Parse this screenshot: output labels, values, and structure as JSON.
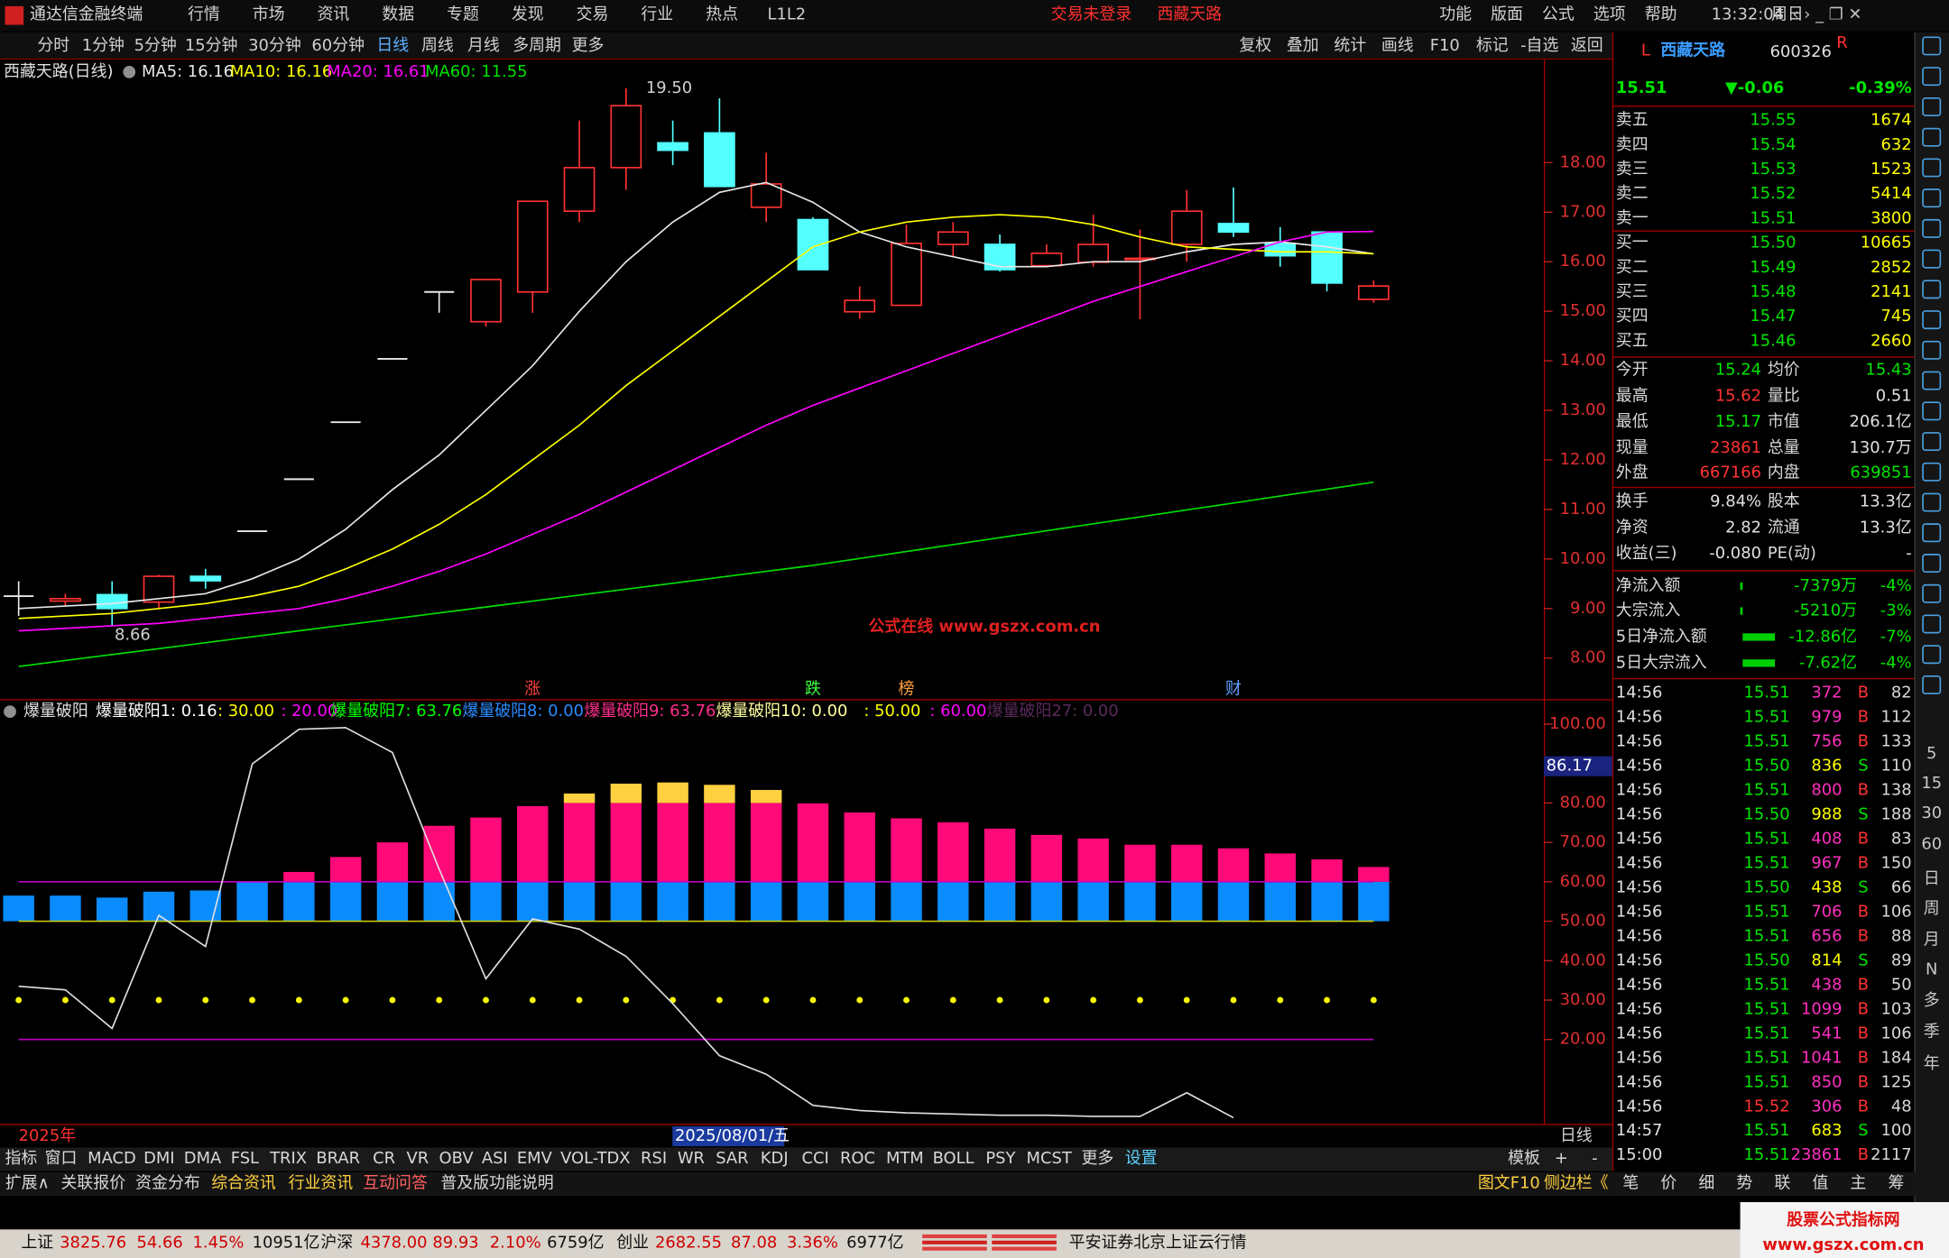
{
  "menu": {
    "app": "通达信金融终端",
    "items": [
      "行情",
      "市场",
      "资讯",
      "数据",
      "专题",
      "发现",
      "交易",
      "行业",
      "热点",
      "L1L2"
    ],
    "status": [
      "交易未登录",
      "西藏天路"
    ],
    "right": [
      "功能",
      "版面",
      "公式",
      "选项",
      "帮助"
    ],
    "time": "13:32:04",
    "weekday": "周日"
  },
  "toolbar": {
    "periods": [
      "分时",
      "1分钟",
      "5分钟",
      "15分钟",
      "30分钟",
      "60分钟",
      "日线",
      "周线",
      "月线",
      "多周期",
      "更多"
    ],
    "active": 6,
    "tools": [
      "复权",
      "叠加",
      "统计",
      "画线",
      "F10",
      "标记",
      "-自选",
      "返回"
    ]
  },
  "chart_data": [
    {
      "type": "candlestick",
      "title": "西藏天路(日线)",
      "open": [
        9.25,
        9.15,
        9.28,
        9.13,
        9.65,
        10.56,
        11.61,
        12.76,
        14.04,
        15.39,
        14.79,
        15.39,
        17.02,
        17.9,
        18.4,
        18.6,
        17.1,
        16.85,
        14.99,
        15.12,
        16.35,
        16.35,
        15.92,
        15.99,
        16.05,
        16.35,
        16.77,
        16.37,
        16.6,
        15.24
      ],
      "high": [
        9.55,
        9.3,
        9.55,
        9.68,
        9.8,
        10.56,
        11.61,
        12.76,
        14.04,
        15.39,
        15.64,
        17.22,
        18.85,
        19.5,
        18.85,
        19.3,
        18.2,
        16.9,
        15.5,
        16.75,
        16.8,
        16.55,
        16.35,
        16.95,
        16.65,
        17.45,
        17.5,
        16.7,
        16.6,
        15.62
      ],
      "low": [
        8.85,
        9.05,
        8.66,
        9.0,
        9.4,
        10.56,
        11.61,
        12.76,
        14.04,
        14.97,
        14.69,
        14.97,
        16.8,
        17.45,
        17.95,
        17.52,
        16.8,
        15.84,
        14.85,
        15.12,
        16.1,
        15.8,
        15.9,
        15.9,
        14.84,
        16.0,
        16.5,
        15.9,
        15.4,
        15.17
      ],
      "close": [
        9.25,
        9.2,
        9.0,
        9.65,
        9.56,
        10.56,
        11.61,
        12.76,
        14.04,
        15.39,
        15.64,
        17.22,
        17.9,
        19.15,
        18.25,
        17.52,
        17.57,
        15.84,
        15.22,
        16.37,
        16.6,
        15.84,
        16.17,
        16.35,
        16.07,
        17.02,
        16.6,
        16.12,
        15.57,
        15.51
      ],
      "up_color": "#ff3232",
      "down_color": "#54ffff",
      "flat_color": "#e8e8e8",
      "series": [
        {
          "name": "MA5: 16.16",
          "color": "#e8e8e8",
          "values": [
            9.0,
            9.05,
            9.1,
            9.2,
            9.3,
            9.6,
            10.0,
            10.6,
            11.4,
            12.1,
            13.0,
            13.9,
            15.0,
            16.0,
            16.8,
            17.4,
            17.6,
            17.2,
            16.6,
            16.3,
            16.1,
            15.9,
            15.9,
            16.0,
            16.0,
            16.2,
            16.35,
            16.4,
            16.3,
            16.16
          ]
        },
        {
          "name": "MA10: 16.16",
          "color": "#ffff00",
          "values": [
            8.8,
            8.85,
            8.9,
            9.0,
            9.1,
            9.25,
            9.45,
            9.8,
            10.2,
            10.7,
            11.3,
            12.0,
            12.7,
            13.5,
            14.2,
            14.9,
            15.6,
            16.3,
            16.6,
            16.8,
            16.9,
            16.95,
            16.9,
            16.75,
            16.5,
            16.3,
            16.25,
            16.2,
            16.2,
            16.16
          ]
        },
        {
          "name": "MA20: 16.61",
          "color": "#ff00ff",
          "values": [
            8.55,
            8.6,
            8.65,
            8.7,
            8.8,
            8.9,
            9.0,
            9.2,
            9.45,
            9.75,
            10.1,
            10.5,
            10.9,
            11.35,
            11.8,
            12.25,
            12.7,
            13.1,
            13.45,
            13.8,
            14.15,
            14.5,
            14.85,
            15.2,
            15.5,
            15.8,
            16.1,
            16.4,
            16.6,
            16.61
          ]
        },
        {
          "name": "MA60: 11.55",
          "color": "#00e000",
          "values": [
            7.83,
            7.95,
            8.07,
            8.19,
            8.31,
            8.43,
            8.55,
            8.67,
            8.79,
            8.91,
            9.03,
            9.15,
            9.27,
            9.39,
            9.51,
            9.63,
            9.75,
            9.87,
            10.01,
            10.15,
            10.29,
            10.43,
            10.57,
            10.71,
            10.85,
            10.99,
            11.13,
            11.27,
            11.41,
            11.55
          ]
        }
      ],
      "ylim": [
        7.17,
        20.08
      ],
      "yticks": [
        {
          "value": 8,
          "label": "8.00"
        },
        {
          "value": 9,
          "label": "9.00"
        },
        {
          "value": 10,
          "label": "10.00"
        },
        {
          "value": 11,
          "label": "11.00"
        },
        {
          "value": 12,
          "label": "12.00"
        },
        {
          "value": 13,
          "label": "13.00"
        },
        {
          "value": 14,
          "label": "14.00"
        },
        {
          "value": 15,
          "label": "15.00"
        },
        {
          "value": 16,
          "label": "16.00"
        },
        {
          "value": 17,
          "label": "17.00"
        },
        {
          "value": 18,
          "label": "18.00"
        }
      ],
      "max_label": "19.50",
      "min_label": "8.66",
      "events": [
        {
          "label": "涨",
          "index": 11,
          "color": "#ff4040"
        },
        {
          "label": "跌",
          "index": 17,
          "color": "#40ff40"
        },
        {
          "label": "榜",
          "index": 19,
          "color": "#ffa040"
        },
        {
          "label": "财",
          "index": 26,
          "color": "#60a0ff"
        }
      ],
      "watermark": "公式在线  www.gszx.com.cn"
    },
    {
      "type": "indicator",
      "title": "爆量破阳",
      "legend": [
        {
          "text": "爆量破阳1: 0.16",
          "color": "#ffffff"
        },
        {
          "text": ": 30.00",
          "color": "#ffff00"
        },
        {
          "text": ": 20.00",
          "color": "#ff00ff"
        },
        {
          "text": "爆量破阳7: 63.76",
          "color": "#00ff00"
        },
        {
          "text": "爆量破阳8: 0.00",
          "color": "#2c8cff"
        },
        {
          "text": "爆量破阳9: 63.76",
          "color": "#ff2e8c"
        },
        {
          "text": "爆量破阳10: 0.00",
          "color": "#ffffa0"
        },
        {
          "text": ": 50.00",
          "color": "#ffff00"
        },
        {
          "text": ": 60.00",
          "color": "#ff00ff"
        },
        {
          "text": "爆量破阳27: 0.00",
          "color": "#5a2a5a"
        }
      ],
      "line": {
        "color": "#e0e0e0",
        "values": [
          33.5,
          32.6,
          22.8,
          51.5,
          43.6,
          89.9,
          98.7,
          99.1,
          92.8,
          63.2,
          35.4,
          50.6,
          48.0,
          41.1,
          29.1,
          15.9,
          11.2,
          3.3,
          2.0,
          1.4,
          1.1,
          0.8,
          0.8,
          0.5,
          0.5,
          6.5,
          0.16,
          null,
          null,
          null
        ]
      },
      "bars": {
        "values": [
          56.5,
          56.5,
          56,
          57.5,
          57.8,
          60,
          62.5,
          66.3,
          70,
          74.2,
          76.3,
          79.2,
          82.4,
          84.9,
          85.2,
          84.6,
          83.3,
          79.9,
          77.6,
          76.1,
          75.1,
          73.5,
          71.9,
          71,
          69.4,
          69.4,
          68.5,
          67.2,
          65.7,
          63.76
        ],
        "base": 50,
        "split": 60,
        "highlight_above": 80,
        "colors": [
          "#0a8cff",
          "#ff0a78",
          "#ffd040"
        ]
      },
      "dots": {
        "value": 30,
        "color": "#ffff00"
      },
      "hlines": [
        {
          "value": 60,
          "color": "#c000c0"
        },
        {
          "value": 50,
          "color": "#c8c800"
        },
        {
          "value": 20,
          "color": "#c000c0"
        }
      ],
      "ylim": [
        -1.4,
        105.7
      ],
      "yticks": [
        {
          "value": 20,
          "label": "20.00"
        },
        {
          "value": 30,
          "label": "30.00"
        },
        {
          "value": 40,
          "label": "40.00"
        },
        {
          "value": 50,
          "label": "50.00"
        },
        {
          "value": 60,
          "label": "60.00"
        },
        {
          "value": 70,
          "label": "70.00"
        },
        {
          "value": 80,
          "label": "80.00"
        },
        {
          "value": 90,
          "label": "90.00"
        },
        {
          "value": 100,
          "label": "100.00"
        }
      ],
      "cursor_label": "86.17"
    }
  ],
  "date_bar": {
    "year": "2025年",
    "cursor": "2025/08/01/五",
    "period": "日线"
  },
  "tabs": {
    "indicators": [
      "指标",
      "窗口",
      "MACD",
      "DMI",
      "DMA",
      "FSL",
      "TRIX",
      "BRAR",
      "CR",
      "VR",
      "OBV",
      "ASI",
      "EMV",
      "VOL-TDX",
      "RSI",
      "WR",
      "SAR",
      "KDJ",
      "CCI",
      "ROC",
      "MTM",
      "BOLL",
      "PSY",
      "MCST",
      "更多",
      "设置"
    ],
    "right": [
      "模板",
      "+",
      "-"
    ]
  },
  "bottom_tabs": {
    "left": [
      "扩展∧",
      "关联报价",
      "资金分布",
      "综合资讯",
      "行业资讯",
      "互动问答",
      "普及版功能说明"
    ],
    "right": [
      "图文F10",
      "侧边栏《"
    ]
  },
  "quote": {
    "prefix": "L",
    "name": "西藏天路",
    "code": "600326",
    "suffix": "R",
    "price": "15.51",
    "change": "▼-0.06",
    "pct": "-0.39%",
    "book": [
      [
        "卖五",
        "15.55",
        "1674"
      ],
      [
        "卖四",
        "15.54",
        "632"
      ],
      [
        "卖三",
        "15.53",
        "1523"
      ],
      [
        "卖二",
        "15.52",
        "5414"
      ],
      [
        "卖一",
        "15.51",
        "3800"
      ],
      [
        "买一",
        "15.50",
        "10665"
      ],
      [
        "买二",
        "15.49",
        "2852"
      ],
      [
        "买三",
        "15.48",
        "2141"
      ],
      [
        "买四",
        "15.47",
        "745"
      ],
      [
        "买五",
        "15.46",
        "2660"
      ]
    ],
    "stats": [
      [
        "今开",
        "15.24",
        "均价",
        "15.43"
      ],
      [
        "最高",
        "15.62",
        "量比",
        "0.51"
      ],
      [
        "最低",
        "15.17",
        "市值",
        "206.1亿"
      ],
      [
        "现量",
        "23861",
        "总量",
        "130.7万"
      ],
      [
        "外盘",
        "667166",
        "内盘",
        "639851"
      ],
      [
        "换手",
        "9.84%",
        "股本",
        "13.3亿"
      ],
      [
        "净资",
        "2.82",
        "流通",
        "13.3亿"
      ],
      [
        "收益(三)",
        "-0.080",
        "PE(动)",
        "-"
      ]
    ],
    "flows": [
      [
        "净流入额",
        "-7379万",
        "-4%"
      ],
      [
        "大宗流入",
        "-5210万",
        "-3%"
      ],
      [
        "5日净流入额",
        "-12.86亿",
        "-7%"
      ],
      [
        "5日大宗流入",
        "-7.62亿",
        "-4%"
      ]
    ],
    "ticks": [
      [
        "14:56",
        "15.51",
        "372",
        "B",
        "82"
      ],
      [
        "14:56",
        "15.51",
        "979",
        "B",
        "112"
      ],
      [
        "14:56",
        "15.51",
        "756",
        "B",
        "133"
      ],
      [
        "14:56",
        "15.50",
        "836",
        "S",
        "110"
      ],
      [
        "14:56",
        "15.51",
        "800",
        "B",
        "138"
      ],
      [
        "14:56",
        "15.50",
        "988",
        "S",
        "188"
      ],
      [
        "14:56",
        "15.51",
        "408",
        "B",
        "83"
      ],
      [
        "14:56",
        "15.51",
        "967",
        "B",
        "150"
      ],
      [
        "14:56",
        "15.50",
        "438",
        "S",
        "66"
      ],
      [
        "14:56",
        "15.51",
        "706",
        "B",
        "106"
      ],
      [
        "14:56",
        "15.51",
        "656",
        "B",
        "88"
      ],
      [
        "14:56",
        "15.50",
        "814",
        "S",
        "89"
      ],
      [
        "14:56",
        "15.51",
        "438",
        "B",
        "50"
      ],
      [
        "14:56",
        "15.51",
        "1099",
        "B",
        "103"
      ],
      [
        "14:56",
        "15.51",
        "541",
        "B",
        "106"
      ],
      [
        "14:56",
        "15.51",
        "1041",
        "B",
        "184"
      ],
      [
        "14:56",
        "15.51",
        "850",
        "B",
        "125"
      ],
      [
        "14:56",
        "15.52",
        "306",
        "B",
        "48"
      ],
      [
        "14:57",
        "15.51",
        "683",
        "S",
        "100"
      ],
      [
        "15:00",
        "15.51",
        "23861",
        "B",
        "2117"
      ]
    ],
    "tabs": [
      "笔",
      "价",
      "细",
      "势",
      "联",
      "值",
      "主",
      "筹"
    ]
  },
  "sidebar": [
    "5",
    "15",
    "30",
    "60",
    "日",
    "周",
    "月",
    "N",
    "多",
    "季",
    "年"
  ],
  "status": {
    "items": [
      [
        "上证",
        "3825.76",
        "54.66",
        "1.45%",
        "10951亿"
      ],
      [
        "沪深",
        "4378.00",
        "89.93",
        "2.10%",
        "6759亿"
      ],
      [
        "创业",
        "2682.55",
        "87.08",
        "3.36%",
        "6977亿"
      ]
    ],
    "broker": "平安证券北京上证云行情"
  },
  "logo": {
    "title": "股票公式指标网",
    "url": "www.gszx.com.cn"
  }
}
